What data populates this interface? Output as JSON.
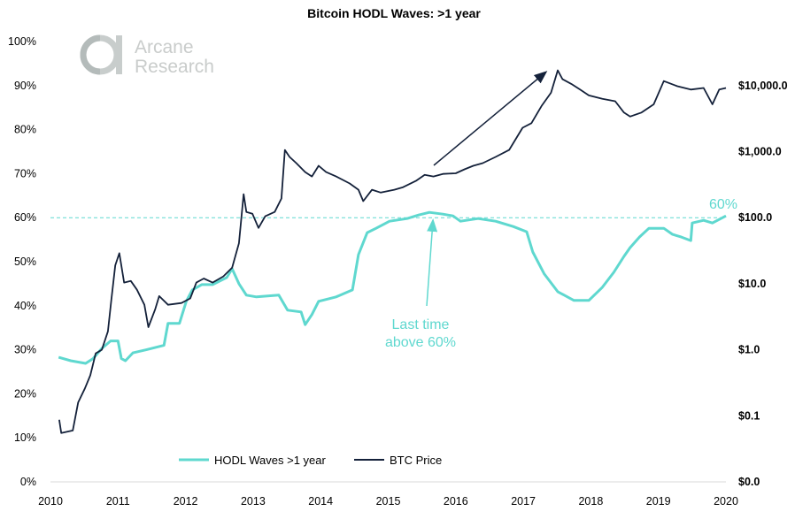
{
  "chart_data": {
    "type": "line",
    "title": "Bitcoin HODL Waves: >1 year",
    "watermark": "Arcane Research",
    "x_ticks": [
      "2010",
      "2011",
      "2012",
      "2013",
      "2014",
      "2015",
      "2016",
      "2017",
      "2018",
      "2019",
      "2020"
    ],
    "xlim": [
      2010,
      2020
    ],
    "y_left": {
      "ticks": [
        "0%",
        "10%",
        "20%",
        "30%",
        "40%",
        "50%",
        "60%",
        "70%",
        "80%",
        "90%",
        "100%"
      ],
      "ylim": [
        0,
        100
      ]
    },
    "y_right": {
      "scale": "log",
      "ticks": [
        {
          "label": "$0.0",
          "value": 0.01
        },
        {
          "label": "$0.1",
          "value": 0.1
        },
        {
          "label": "$1.0",
          "value": 1
        },
        {
          "label": "$10.0",
          "value": 10
        },
        {
          "label": "$100.0",
          "value": 100
        },
        {
          "label": "$1,000.0",
          "value": 1000
        },
        {
          "label": "$10,000.0",
          "value": 10000
        }
      ]
    },
    "grid": false,
    "legend": "bottom",
    "reference_line": {
      "value": 60,
      "label": "60%",
      "color": "#5fd8cf"
    },
    "annotations": [
      {
        "text_lines": [
          "Last time",
          "above 60%"
        ],
        "color": "#5fd8cf"
      }
    ],
    "series": [
      {
        "name": "HODL Waves >1 year",
        "axis": "left",
        "color": "#5fd8cf",
        "points": [
          [
            2010.12,
            28.3
          ],
          [
            2010.3,
            27.5
          ],
          [
            2010.52,
            26.9
          ],
          [
            2010.63,
            28
          ],
          [
            2010.76,
            30.3
          ],
          [
            2010.89,
            32
          ],
          [
            2011.0,
            32
          ],
          [
            2011.05,
            28
          ],
          [
            2011.11,
            27.5
          ],
          [
            2011.22,
            29.3
          ],
          [
            2011.42,
            30
          ],
          [
            2011.68,
            31
          ],
          [
            2011.74,
            36
          ],
          [
            2011.91,
            36
          ],
          [
            2012.01,
            41
          ],
          [
            2012.1,
            43.6
          ],
          [
            2012.24,
            44.8
          ],
          [
            2012.4,
            44.8
          ],
          [
            2012.61,
            46.4
          ],
          [
            2012.69,
            48.4
          ],
          [
            2012.79,
            45
          ],
          [
            2012.9,
            42.4
          ],
          [
            2013.05,
            42
          ],
          [
            2013.38,
            42.4
          ],
          [
            2013.51,
            39
          ],
          [
            2013.71,
            38.6
          ],
          [
            2013.77,
            35.7
          ],
          [
            2013.87,
            38
          ],
          [
            2013.97,
            41
          ],
          [
            2014.23,
            42
          ],
          [
            2014.47,
            43.6
          ],
          [
            2014.56,
            51.6
          ],
          [
            2014.69,
            56.6
          ],
          [
            2014.82,
            57.6
          ],
          [
            2015.02,
            59.2
          ],
          [
            2015.28,
            59.8
          ],
          [
            2015.45,
            60.6
          ],
          [
            2015.61,
            61.2
          ],
          [
            2015.81,
            60.8
          ],
          [
            2015.96,
            60.4
          ],
          [
            2016.07,
            59.2
          ],
          [
            2016.33,
            59.8
          ],
          [
            2016.59,
            59.2
          ],
          [
            2016.85,
            58
          ],
          [
            2017.05,
            56.8
          ],
          [
            2017.14,
            52.2
          ],
          [
            2017.31,
            47.2
          ],
          [
            2017.51,
            43.2
          ],
          [
            2017.75,
            41.2
          ],
          [
            2017.97,
            41.2
          ],
          [
            2018.17,
            44.2
          ],
          [
            2018.34,
            47.6
          ],
          [
            2018.49,
            51.2
          ],
          [
            2018.58,
            53.2
          ],
          [
            2018.72,
            55.6
          ],
          [
            2018.86,
            57.6
          ],
          [
            2019.08,
            57.6
          ],
          [
            2019.21,
            56.2
          ],
          [
            2019.34,
            55.6
          ],
          [
            2019.48,
            54.8
          ],
          [
            2019.5,
            58.8
          ],
          [
            2019.67,
            59.4
          ],
          [
            2019.8,
            58.8
          ],
          [
            2020.0,
            60.4
          ]
        ]
      },
      {
        "name": "BTC Price",
        "axis": "right",
        "color": "#14213a",
        "points": [
          [
            2010.13,
            0.087
          ],
          [
            2010.16,
            0.055
          ],
          [
            2010.33,
            0.06
          ],
          [
            2010.41,
            0.16
          ],
          [
            2010.51,
            0.26
          ],
          [
            2010.59,
            0.41
          ],
          [
            2010.67,
            0.88
          ],
          [
            2010.76,
            1.0
          ],
          [
            2010.85,
            1.9
          ],
          [
            2010.9,
            5.6
          ],
          [
            2010.96,
            19
          ],
          [
            2011.02,
            29
          ],
          [
            2011.09,
            10.4
          ],
          [
            2011.19,
            11
          ],
          [
            2011.28,
            8.1
          ],
          [
            2011.39,
            4.8
          ],
          [
            2011.45,
            2.2
          ],
          [
            2011.55,
            4.1
          ],
          [
            2011.61,
            6.5
          ],
          [
            2011.74,
            4.8
          ],
          [
            2011.94,
            5.1
          ],
          [
            2012.07,
            6
          ],
          [
            2012.16,
            10.4
          ],
          [
            2012.27,
            12
          ],
          [
            2012.4,
            10.4
          ],
          [
            2012.56,
            12.9
          ],
          [
            2012.69,
            17.5
          ],
          [
            2012.79,
            41
          ],
          [
            2012.86,
            227
          ],
          [
            2012.9,
            122
          ],
          [
            2012.99,
            115
          ],
          [
            2013.08,
            70
          ],
          [
            2013.18,
            105
          ],
          [
            2013.32,
            122
          ],
          [
            2013.42,
            195
          ],
          [
            2013.47,
            1060
          ],
          [
            2013.54,
            830
          ],
          [
            2013.64,
            670
          ],
          [
            2013.77,
            490
          ],
          [
            2013.87,
            420
          ],
          [
            2013.97,
            610
          ],
          [
            2014.08,
            490
          ],
          [
            2014.23,
            420
          ],
          [
            2014.43,
            330
          ],
          [
            2014.56,
            265
          ],
          [
            2014.63,
            178
          ],
          [
            2014.76,
            265
          ],
          [
            2014.89,
            240
          ],
          [
            2015.09,
            265
          ],
          [
            2015.22,
            290
          ],
          [
            2015.41,
            360
          ],
          [
            2015.54,
            445
          ],
          [
            2015.67,
            420
          ],
          [
            2015.81,
            460
          ],
          [
            2016.0,
            470
          ],
          [
            2016.13,
            540
          ],
          [
            2016.26,
            610
          ],
          [
            2016.4,
            670
          ],
          [
            2016.59,
            830
          ],
          [
            2016.79,
            1060
          ],
          [
            2016.99,
            2300
          ],
          [
            2017.12,
            2700
          ],
          [
            2017.27,
            4900
          ],
          [
            2017.41,
            7800
          ],
          [
            2017.51,
            17000
          ],
          [
            2017.58,
            12500
          ],
          [
            2017.71,
            10600
          ],
          [
            2017.84,
            8700
          ],
          [
            2017.97,
            7100
          ],
          [
            2018.17,
            6300
          ],
          [
            2018.36,
            5800
          ],
          [
            2018.49,
            3900
          ],
          [
            2018.58,
            3400
          ],
          [
            2018.75,
            3900
          ],
          [
            2018.93,
            5200
          ],
          [
            2019.08,
            11700
          ],
          [
            2019.28,
            9800
          ],
          [
            2019.48,
            8700
          ],
          [
            2019.67,
            9200
          ],
          [
            2019.8,
            5200
          ],
          [
            2019.9,
            8700
          ],
          [
            2020.0,
            9200
          ]
        ]
      }
    ]
  }
}
